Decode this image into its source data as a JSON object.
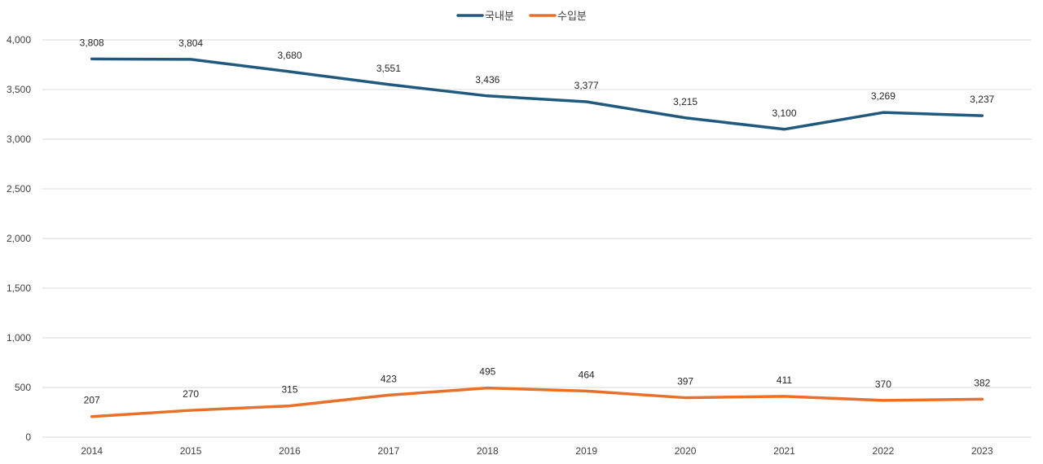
{
  "chart_data": {
    "type": "line",
    "title": "",
    "xlabel": "",
    "ylabel": "",
    "x": [
      "2014",
      "2015",
      "2016",
      "2017",
      "2018",
      "2019",
      "2020",
      "2021",
      "2022",
      "2023"
    ],
    "ylim": [
      0,
      4000
    ],
    "yticks": [
      0,
      500,
      1000,
      1500,
      2000,
      2500,
      3000,
      3500,
      4000
    ],
    "ytick_labels": [
      "0",
      "500",
      "1,000",
      "1,500",
      "2,000",
      "2,500",
      "3,000",
      "3,500",
      "4,000"
    ],
    "grid": true,
    "legend_position": "top-center",
    "series": [
      {
        "name": "국내분",
        "color": "#1f5a7e",
        "values": [
          3808,
          3804,
          3680,
          3551,
          3436,
          3377,
          3215,
          3100,
          3269,
          3237
        ],
        "labels": [
          "3,808",
          "3,804",
          "3,680",
          "3,551",
          "3,436",
          "3,377",
          "3,215",
          "3,100",
          "3,269",
          "3,237"
        ]
      },
      {
        "name": "수입분",
        "color": "#e8702a",
        "values": [
          207,
          270,
          315,
          423,
          495,
          464,
          397,
          411,
          370,
          382
        ],
        "labels": [
          "207",
          "270",
          "315",
          "423",
          "495",
          "464",
          "397",
          "411",
          "370",
          "382"
        ]
      }
    ]
  }
}
